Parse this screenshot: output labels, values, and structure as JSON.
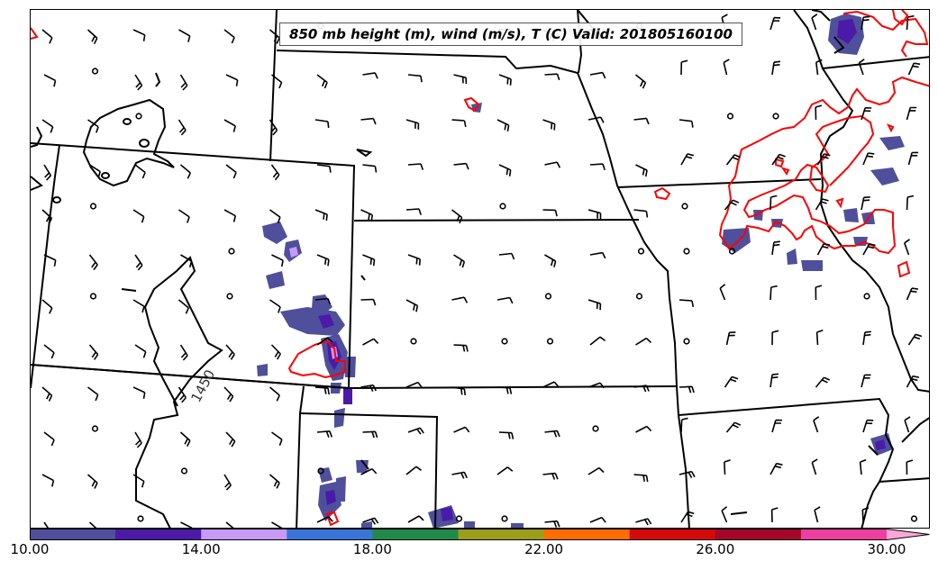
{
  "title": "850 mb height (m), wind (m/s), T (C) Valid: 201805160100",
  "contour_label": "1450",
  "colorbar": {
    "tick_labels": [
      "10.00",
      "14.00",
      "18.00",
      "22.00",
      "26.00",
      "30.00"
    ],
    "colors": [
      "#4f4f9c",
      "#4b1aa8",
      "#c79af8",
      "#3a74d8",
      "#218a4a",
      "#9c9e1a",
      "#ff6d00",
      "#d40a0a",
      "#a5062a",
      "#ee3fa0"
    ],
    "extend_color": "#f7a8d8"
  },
  "map": {
    "state_boundary_color": "#000000",
    "height_contour_color": "#000000",
    "temperature_contour_color": "#ff0000",
    "wind_barb_color": "#000000",
    "calm_marker": "circle"
  }
}
